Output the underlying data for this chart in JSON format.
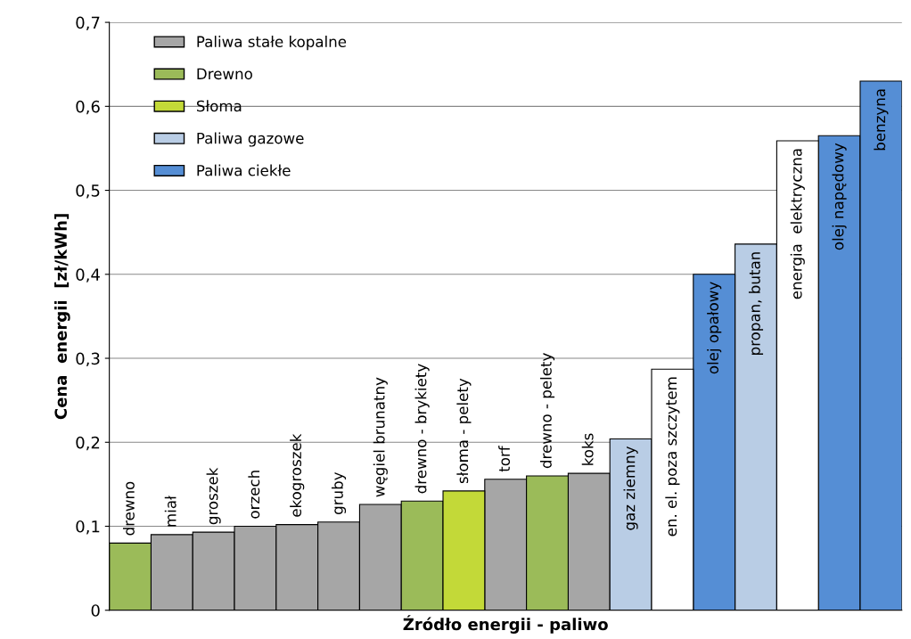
{
  "chart_data": {
    "type": "bar",
    "xlabel": "Źródło energii - paliwo",
    "ylabel": "Cena  energii  [zł/kWh]",
    "categories": [
      "drewno",
      "miał",
      "groszek",
      "orzech",
      "ekogroszek",
      "gruby",
      "węgiel brunatny",
      "drewno - brykiety",
      "słoma - pelety",
      "torf",
      "drewno - pelety",
      "koks",
      "gaz ziemny",
      "en. el. poza szczytem",
      "olej opałowy",
      "propan, butan",
      "energia  elektryczna",
      "olej napędowy",
      "benzyna"
    ],
    "series": [
      {
        "name": "Paliwa stałe kopalne",
        "color": "#a6a6a6",
        "values": [
          null,
          0.09,
          0.093,
          0.1,
          0.102,
          0.105,
          0.126,
          null,
          null,
          0.156,
          null,
          0.163,
          null,
          null,
          null,
          null,
          null,
          null,
          null
        ]
      },
      {
        "name": "Drewno",
        "color": "#9bbb59",
        "values": [
          0.08,
          null,
          null,
          null,
          null,
          null,
          null,
          0.13,
          null,
          null,
          0.16,
          null,
          null,
          null,
          null,
          null,
          null,
          null,
          null
        ]
      },
      {
        "name": "Słoma",
        "color": "#c3d938",
        "values": [
          null,
          null,
          null,
          null,
          null,
          null,
          null,
          null,
          0.142,
          null,
          null,
          null,
          null,
          null,
          null,
          null,
          null,
          null,
          null
        ]
      },
      {
        "name": "Paliwa gazowe",
        "color": "#b9cde5",
        "values": [
          null,
          null,
          null,
          null,
          null,
          null,
          null,
          null,
          null,
          null,
          null,
          null,
          0.204,
          null,
          null,
          0.436,
          null,
          null,
          null
        ]
      },
      {
        "name": "Paliwa ciekłe",
        "color": "#558ed5",
        "values": [
          null,
          null,
          null,
          null,
          null,
          null,
          null,
          null,
          null,
          null,
          null,
          null,
          null,
          null,
          0.4,
          null,
          null,
          0.565,
          0.63
        ]
      },
      {
        "color": "#ffffff",
        "values": [
          null,
          null,
          null,
          null,
          null,
          null,
          null,
          null,
          null,
          null,
          null,
          null,
          null,
          0.287,
          null,
          null,
          0.559,
          null,
          null
        ]
      }
    ],
    "ylim": [
      0,
      0.7
    ],
    "yticks": [
      0,
      {
        "value": 0.1,
        "label": "0,1"
      },
      {
        "value": 0.2,
        "label": "0,2"
      },
      {
        "value": 0.3,
        "label": "0,3"
      },
      {
        "value": 0.4,
        "label": "0,4"
      },
      {
        "value": 0.5,
        "label": "0,5"
      },
      {
        "value": 0.6,
        "label": "0,6"
      },
      {
        "value": 0.7,
        "label": "0,7"
      }
    ],
    "grid": "y",
    "legend": "top left"
  }
}
